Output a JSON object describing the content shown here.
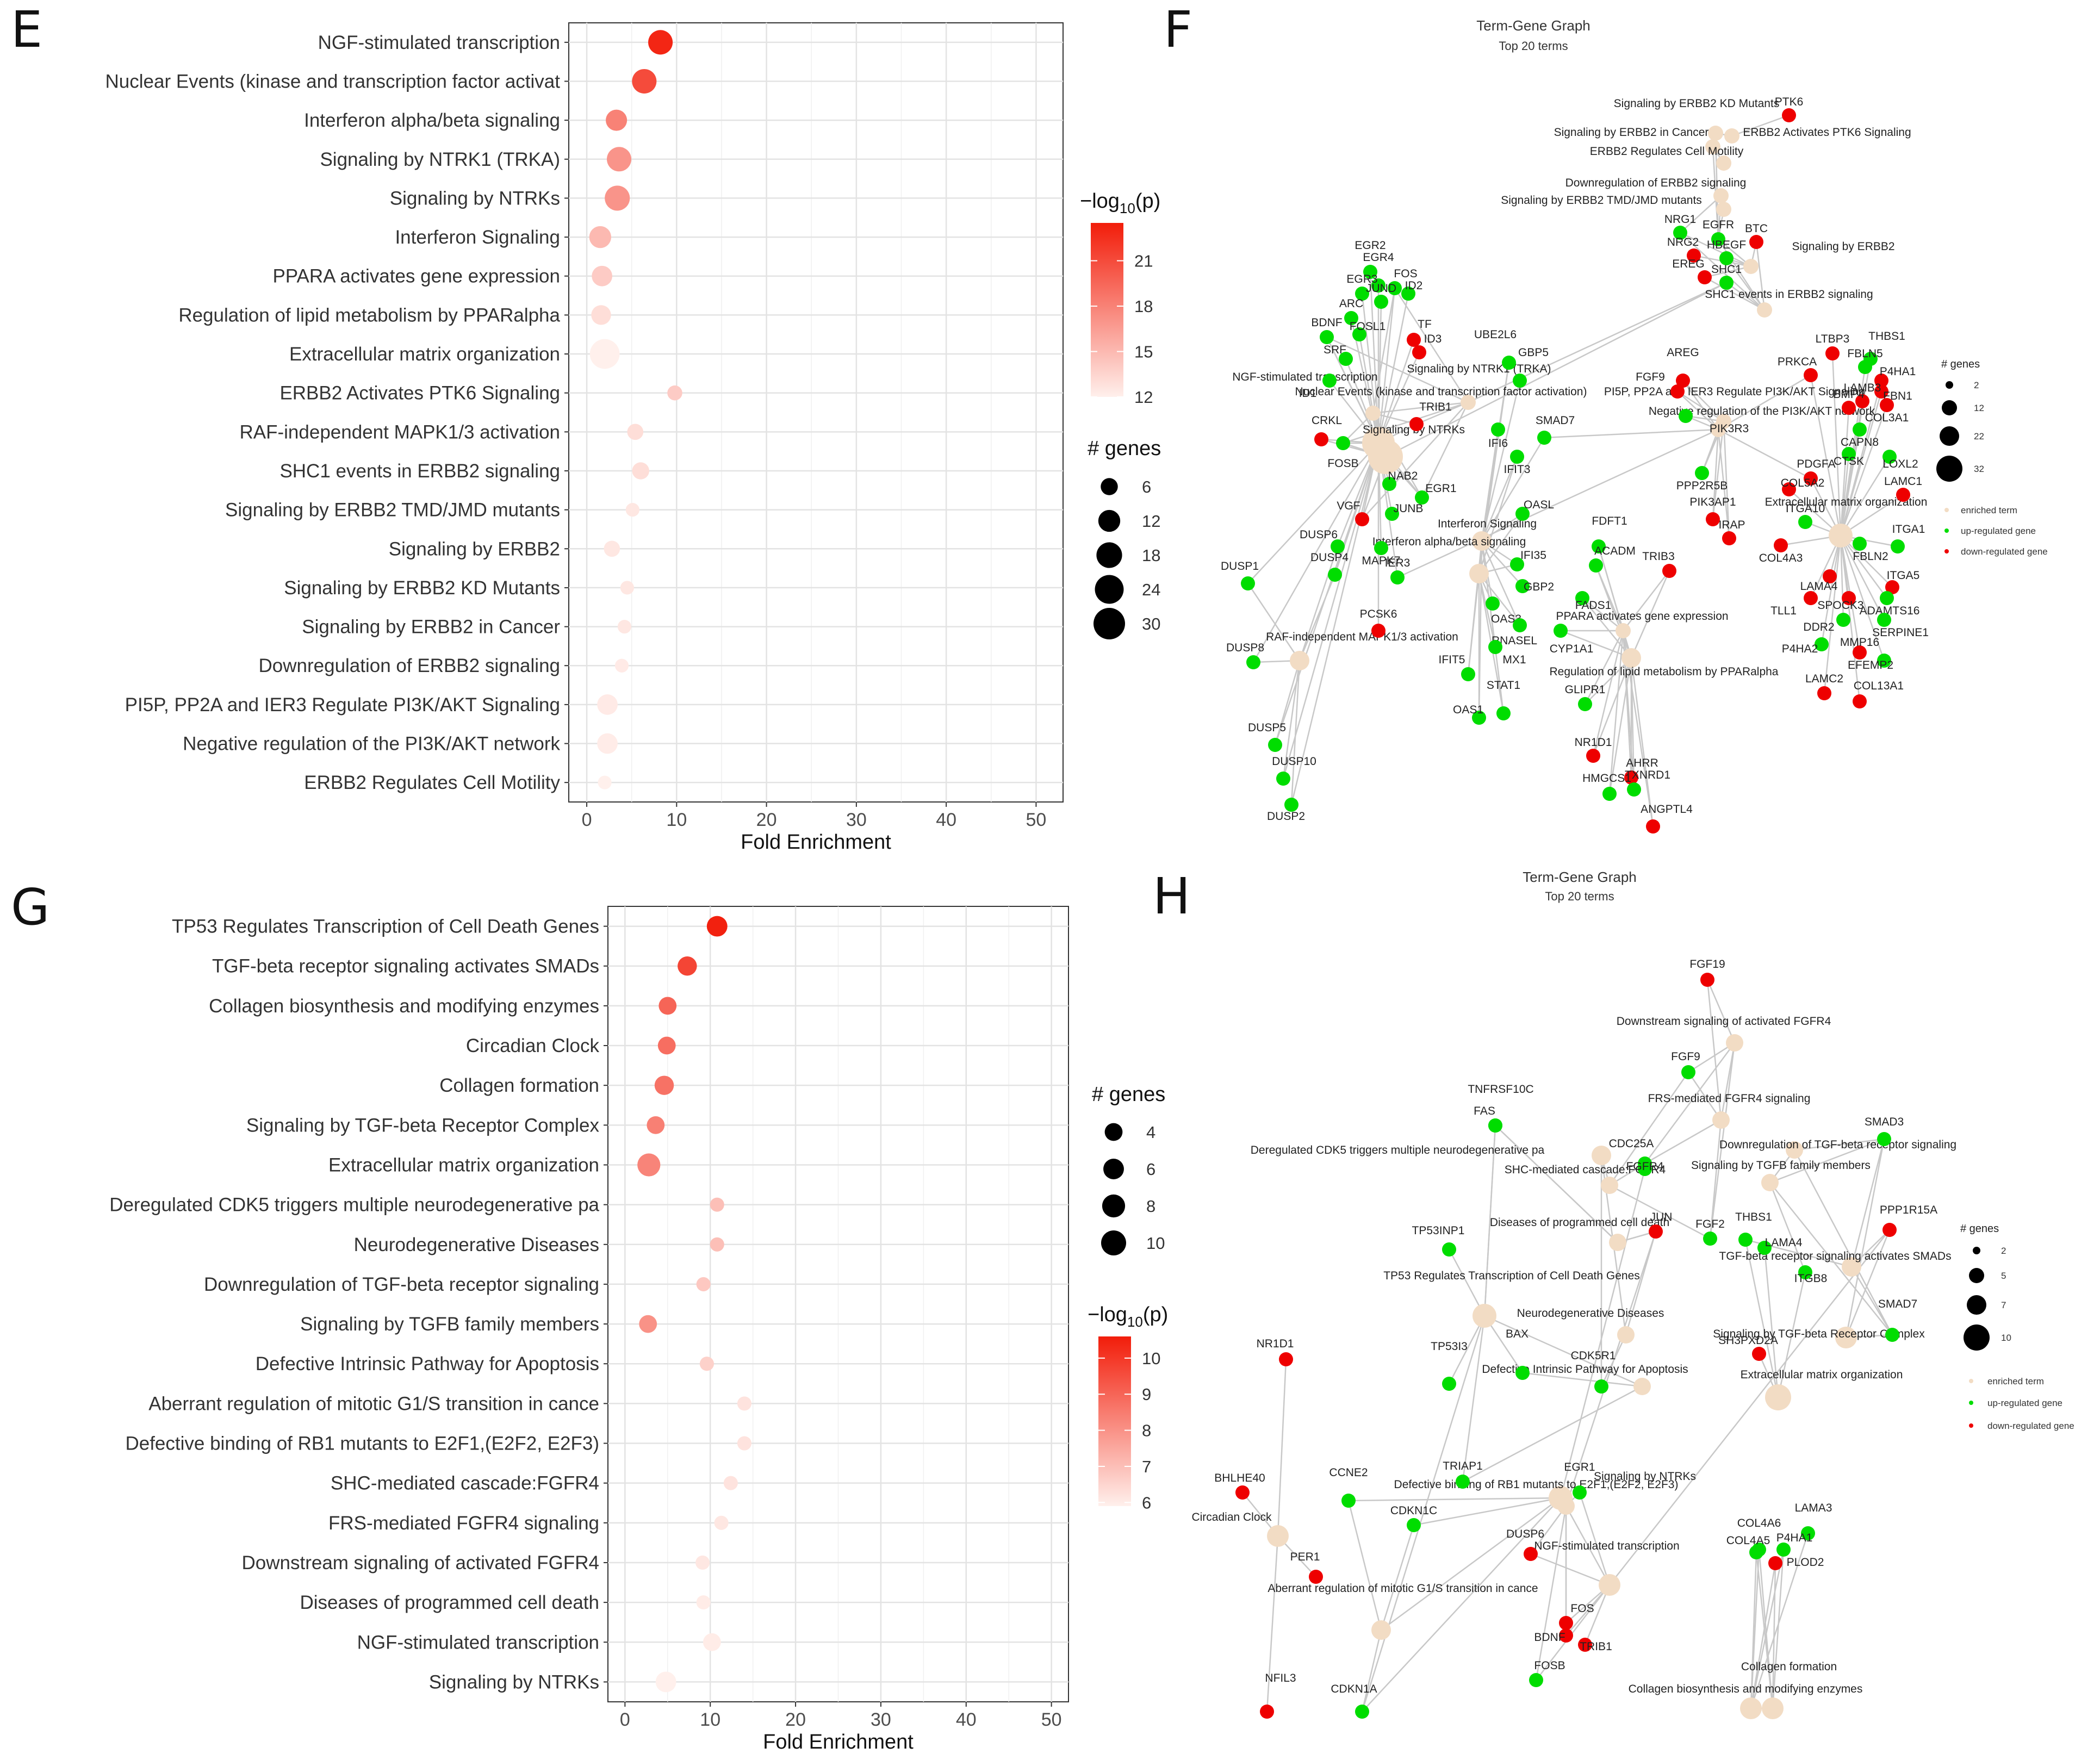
{
  "panels": {
    "E": "E",
    "F": "F",
    "G": "G",
    "H": "H"
  },
  "chart_data": [
    {
      "id": "E",
      "type": "scatter",
      "title": "",
      "xlabel": "Fold Enrichment",
      "ylabel": "",
      "xlim": [
        -2,
        53
      ],
      "xticks": [
        0,
        10,
        20,
        30,
        40,
        50
      ],
      "grid": true,
      "categories": [
        "NGF-stimulated transcription",
        "Nuclear Events (kinase and transcription factor activat",
        "Interferon alpha/beta signaling",
        "Signaling by NTRK1 (TRKA)",
        "Signaling by NTRKs",
        "Interferon Signaling",
        "PPARA activates gene expression",
        "Regulation of lipid metabolism by PPARalpha",
        "Extracellular matrix organization",
        "ERBB2 Activates PTK6 Signaling",
        "RAF-independent MAPK1/3 activation",
        "SHC1 events in ERBB2 signaling",
        "Signaling by ERBB2 TMD/JMD mutants",
        "Signaling by ERBB2",
        "Signaling by ERBB2 KD Mutants",
        "Signaling by ERBB2 in Cancer",
        "Downregulation of ERBB2 signaling",
        "PI5P, PP2A and IER3 Regulate PI3K/AKT Signaling",
        "Negative regulation of the PI3K/AKT network",
        "ERBB2 Regulates Cell Motility"
      ],
      "fold_enrichment": [
        8.2,
        6.4,
        3.3,
        3.6,
        3.4,
        1.5,
        1.7,
        1.6,
        2.0,
        9.8,
        5.4,
        6.0,
        5.1,
        2.8,
        4.5,
        4.2,
        3.9,
        2.3,
        2.3,
        2.0
      ],
      "neg_log10_p": [
        23,
        21,
        18,
        17,
        17,
        15,
        14,
        13,
        12,
        14,
        13,
        13,
        12.5,
        12.5,
        12.5,
        12.5,
        12.3,
        12.3,
        12.2,
        12
      ],
      "genes": [
        16,
        16,
        11,
        16,
        17,
        12,
        10,
        9,
        26,
        4,
        5,
        6,
        3,
        5,
        3,
        3,
        3,
        10,
        10,
        3
      ],
      "color_legend": {
        "title": "−log10(p)",
        "ticks": [
          21,
          18,
          15,
          12
        ],
        "range": [
          12,
          23.5
        ],
        "low": "#fff0ec",
        "high": "#f21d0a"
      },
      "size_legend": {
        "title": "# genes",
        "values": [
          6,
          12,
          18,
          24,
          30
        ]
      }
    },
    {
      "id": "G",
      "type": "scatter",
      "title": "",
      "xlabel": "Fold Enrichment",
      "ylabel": "",
      "xlim": [
        -2,
        52
      ],
      "xticks": [
        0,
        10,
        20,
        30,
        40,
        50
      ],
      "grid": true,
      "categories": [
        "TP53 Regulates Transcription of Cell Death Genes",
        "TGF-beta receptor signaling activates SMADs",
        "Collagen biosynthesis and modifying enzymes",
        "Circadian Clock",
        "Collagen formation",
        "Signaling by TGF-beta Receptor Complex",
        "Extracellular matrix organization",
        "Deregulated CDK5 triggers multiple neurodegenerative pa",
        "Neurodegenerative Diseases",
        "Downregulation of TGF-beta receptor signaling",
        "Signaling by TGFB family members",
        "Defective Intrinsic Pathway for Apoptosis",
        "Aberrant regulation of mitotic G1/S transition in cance",
        "Defective binding of RB1 mutants to E2F1,(E2F2, E2F3)",
        "SHC-mediated cascade:FGFR4",
        "FRS-mediated FGFR4 signaling",
        "Downstream signaling of activated FGFR4",
        "Diseases of programmed cell death",
        "NGF-stimulated transcription",
        "Signaling by NTRKs"
      ],
      "fold_enrichment": [
        10.8,
        7.3,
        5.0,
        4.9,
        4.6,
        3.6,
        2.8,
        10.8,
        10.8,
        9.2,
        2.7,
        9.6,
        14.0,
        14.0,
        12.4,
        11.3,
        9.1,
        9.2,
        10.2,
        4.8
      ],
      "neg_log10_p": [
        10.5,
        9.7,
        9.0,
        8.8,
        8.7,
        8.4,
        8.3,
        7.0,
        7.0,
        6.8,
        8.0,
        6.6,
        6.2,
        6.2,
        6.2,
        6.1,
        6.1,
        6.0,
        6.0,
        5.9
      ],
      "genes": [
        6,
        5,
        4,
        4,
        5,
        4,
        8,
        2,
        2,
        2,
        4,
        2,
        2,
        2,
        2,
        2,
        2,
        2,
        4,
        6
      ],
      "color_legend": {
        "title": "−log10(p)",
        "ticks": [
          10,
          9,
          8,
          7,
          6
        ],
        "range": [
          5.9,
          10.6
        ],
        "low": "#fff0ec",
        "high": "#f21d0a"
      },
      "size_legend": {
        "title": "# genes",
        "values": [
          4,
          6,
          8,
          10
        ]
      }
    }
  ],
  "network_F": {
    "title": "Term-Gene Graph",
    "subtitle": "Top 20 terms",
    "legend": {
      "title": "# genes",
      "sizes": [
        "2",
        "12",
        "22",
        "32"
      ],
      "enriched": "enriched term",
      "up": "up-regulated gene",
      "down": "down-regulated gene"
    },
    "terms": [
      "Signaling by ERBB2 KD Mutants",
      "Signaling by ERBB2 in Cancer",
      "ERBB2 Activates PTK6 Signaling",
      "ERBB2 Regulates Cell Motility",
      "Downregulation of ERBB2 signaling",
      "Signaling by ERBB2 TMD/JMD mutants",
      "Signaling by ERBB2",
      "SHC1 events in ERBB2 signaling",
      "NGF-stimulated transcription",
      "Nuclear Events (kinase and transcription factor activation)",
      "Signaling by NTRK1 (TRKA)",
      "PI5P, PP2A and IER3 Regulate PI3K/AKT Signaling",
      "Negative regulation of the PI3K/AKT network",
      "Signaling by NTRKs",
      "Interferon Signaling",
      "Interferon alpha/beta signaling",
      "Extracellular matrix organization",
      "PPARA activates gene expression",
      "RAF-independent MAPK1/3 activation",
      "Regulation of lipid metabolism by PPARalpha"
    ],
    "up_genes": [
      "EGR2",
      "EGR4",
      "EGR3",
      "FOS",
      "ID2",
      "ARC",
      "JUND",
      "BDNF",
      "FOSL1",
      "SRF",
      "ID1",
      "FOSB",
      "NAB2",
      "EGR1",
      "JUNB",
      "DUSP6",
      "DUSP4",
      "MAPK7",
      "IER3",
      "DUSP1",
      "DUSP8",
      "DUSP5",
      "DUSP10",
      "DUSP2",
      "UBE2L6",
      "GBP5",
      "IFI6",
      "SMAD7",
      "IFIT3",
      "OASL",
      "IFI35",
      "GBP2",
      "OAS3",
      "RNASEL",
      "MX1",
      "IFIT5",
      "OAS1",
      "STAT1",
      "EGFR",
      "NRG1",
      "HBEGF",
      "SHC1",
      "FDFT1",
      "ACADM",
      "FADS1",
      "CYP1A1",
      "GLIPR1",
      "TXNRD1",
      "HMGCS1",
      "PIK3R3",
      "PPP2R5B",
      "FBLN5",
      "THBS1",
      "CAPN8",
      "CTSK",
      "LOXL2",
      "ITGA1",
      "ITGA10",
      "DDR2",
      "SERPINE1",
      "ADAMTS16",
      "P4HA2",
      "FBLN2",
      "EFEMP2"
    ],
    "down_genes": [
      "PTK6",
      "NRG2",
      "EREG",
      "BTC",
      "AREG",
      "FGF9",
      "TF",
      "ID3",
      "CRKL",
      "TRIB1",
      "VGF",
      "PCSK6",
      "LTBP3",
      "PRKCA",
      "P4HA1",
      "FBN1",
      "COL3A1",
      "LAMB3",
      "BMP4",
      "PDGFA",
      "COL5A2",
      "PIK3AP1",
      "IRAP",
      "COL4A3",
      "LAMA4",
      "SPOCK3",
      "ITGA5",
      "TLL1",
      "MMP16",
      "LAMC2",
      "COL13A1",
      "LAMC1",
      "TRIB3",
      "NR1D1",
      "AHRR",
      "ANGPTL4"
    ]
  },
  "network_H": {
    "title": "Term-Gene Graph",
    "subtitle": "Top 20 terms",
    "legend": {
      "title": "# genes",
      "sizes": [
        "2",
        "5",
        "7",
        "10"
      ],
      "enriched": "enriched term",
      "up": "up-regulated gene",
      "down": "down-regulated gene"
    },
    "terms": [
      "Downstream signaling of activated FGFR4",
      "FRS-mediated FGFR4 signaling",
      "Downregulation of TGF-beta receptor signaling",
      "Signaling by TGFB family members",
      "Deregulated CDK5 triggers multiple neurodegenerative pa",
      "SHC-mediated cascade:FGFR4",
      "Diseases of programmed cell death",
      "TGF-beta receptor signaling activates SMADs",
      "TP53 Regulates Transcription of Cell Death Genes",
      "Neurodegenerative Diseases",
      "Signaling by TGF-beta Receptor Complex",
      "Defective Intrinsic Pathway for Apoptosis",
      "Extracellular matrix organization",
      "Defective binding of RB1 mutants to E2F1,(E2F2, E2F3)",
      "Signaling by NTRKs",
      "Circadian Clock",
      "NGF-stimulated transcription",
      "Aberrant regulation of mitotic G1/S transition in cance",
      "Collagen formation",
      "Collagen biosynthesis and modifying enzymes"
    ],
    "up_genes": [
      "FGF9",
      "TNFRSF10C",
      "FAS",
      "CDC25A",
      "SMAD3",
      "FGFR4",
      "THBS1",
      "FGF2",
      "LAMA4",
      "TP53INP1",
      "TP53I3",
      "BAX",
      "CDK5R1",
      "ITGB8",
      "SMAD7",
      "CCNE2",
      "TRIAP1",
      "CDKN1C",
      "EGR1",
      "COL4A6",
      "COL4A5",
      "LAMA3",
      "P4HA1",
      "FOSB",
      "CDKN1A"
    ],
    "down_genes": [
      "FGF19",
      "JUN",
      "PPP1R15A",
      "SH3PXD2A",
      "NR1D1",
      "BHLHE40",
      "PER1",
      "DUSP6",
      "FOS",
      "BDNF",
      "TRIB1",
      "PLOD2",
      "NFIL3"
    ]
  }
}
